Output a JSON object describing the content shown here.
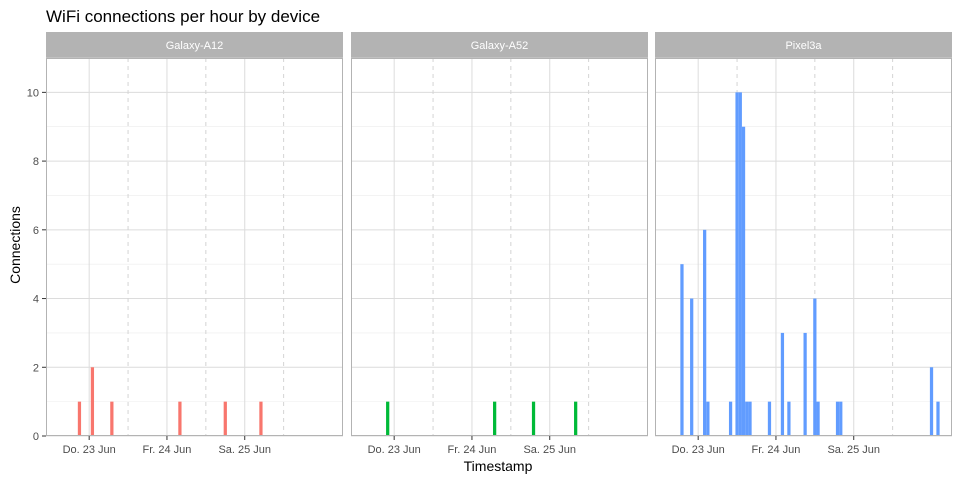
{
  "chart_data": {
    "type": "bar",
    "title": "WiFi connections per hour by device",
    "xlabel": "Timestamp",
    "ylabel": "Connections",
    "ylim": [
      0,
      11
    ],
    "y_ticks": [
      0,
      2,
      4,
      6,
      8,
      10
    ],
    "x_range": [
      "2023-06-22 15:00",
      "2023-06-26 02:00"
    ],
    "x_ticks": [
      {
        "label": "Do. 23 Jun",
        "value": "2023-06-23 00:00"
      },
      {
        "label": "Fr. 24 Jun",
        "value": "2023-06-24 00:00"
      },
      {
        "label": "Sa. 25 Jun",
        "value": "2023-06-25 00:00"
      }
    ],
    "grid": true,
    "series": [
      {
        "name": "Galaxy-A12",
        "color": "#F8766D",
        "points": [
          {
            "x": "2023-06-22 21:00",
            "y": 1
          },
          {
            "x": "2023-06-23 01:00",
            "y": 2
          },
          {
            "x": "2023-06-23 07:00",
            "y": 1
          },
          {
            "x": "2023-06-24 04:00",
            "y": 1
          },
          {
            "x": "2023-06-24 18:00",
            "y": 1
          },
          {
            "x": "2023-06-25 05:00",
            "y": 1
          }
        ]
      },
      {
        "name": "Galaxy-A52",
        "color": "#00BA38",
        "points": [
          {
            "x": "2023-06-22 22:00",
            "y": 1
          },
          {
            "x": "2023-06-24 07:00",
            "y": 1
          },
          {
            "x": "2023-06-24 19:00",
            "y": 1
          },
          {
            "x": "2023-06-25 08:00",
            "y": 1
          }
        ]
      },
      {
        "name": "Pixel3a",
        "color": "#619CFF",
        "points": [
          {
            "x": "2023-06-22 19:00",
            "y": 5
          },
          {
            "x": "2023-06-22 22:00",
            "y": 4
          },
          {
            "x": "2023-06-23 02:00",
            "y": 6
          },
          {
            "x": "2023-06-23 03:00",
            "y": 1
          },
          {
            "x": "2023-06-23 10:00",
            "y": 1
          },
          {
            "x": "2023-06-23 12:00",
            "y": 10
          },
          {
            "x": "2023-06-23 13:00",
            "y": 10
          },
          {
            "x": "2023-06-23 14:00",
            "y": 9
          },
          {
            "x": "2023-06-23 15:00",
            "y": 1
          },
          {
            "x": "2023-06-23 16:00",
            "y": 1
          },
          {
            "x": "2023-06-23 22:00",
            "y": 1
          },
          {
            "x": "2023-06-24 02:00",
            "y": 3
          },
          {
            "x": "2023-06-24 04:00",
            "y": 1
          },
          {
            "x": "2023-06-24 09:00",
            "y": 3
          },
          {
            "x": "2023-06-24 12:00",
            "y": 4
          },
          {
            "x": "2023-06-24 13:00",
            "y": 1
          },
          {
            "x": "2023-06-24 19:00",
            "y": 1
          },
          {
            "x": "2023-06-24 20:00",
            "y": 1
          },
          {
            "x": "2023-06-26 00:00",
            "y": 2
          },
          {
            "x": "2023-06-26 02:00",
            "y": 1
          }
        ]
      }
    ]
  }
}
